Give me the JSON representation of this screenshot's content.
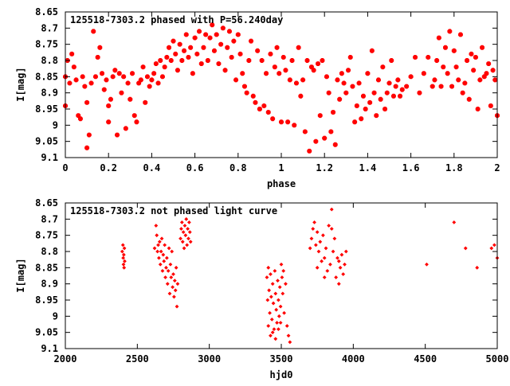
{
  "colors": {
    "points": "#ff0000",
    "axes": "#000000",
    "background": "#ffffff"
  },
  "chart_data": [
    {
      "type": "scatter",
      "title": "125518-7303.2 phased with P=56.240day",
      "xlabel": "phase",
      "ylabel": "I[mag]",
      "xlim": [
        0,
        2
      ],
      "ylim": [
        8.65,
        9.1
      ],
      "y_inverted": true,
      "grid": false,
      "marker": "star",
      "xticks": [
        "0",
        "0.2",
        "0.4",
        "0.6",
        "0.8",
        "1",
        "1.2",
        "1.4",
        "1.6",
        "1.8",
        "2"
      ],
      "yticks": [
        "8.65",
        "8.7",
        "8.75",
        "8.8",
        "8.85",
        "8.9",
        "8.95",
        "9",
        "9.05",
        "9.1"
      ],
      "points": [
        [
          0.0,
          8.85
        ],
        [
          0.0,
          8.94
        ],
        [
          0.01,
          8.8
        ],
        [
          0.02,
          8.87
        ],
        [
          0.03,
          8.78
        ],
        [
          0.04,
          8.82
        ],
        [
          0.05,
          8.86
        ],
        [
          0.06,
          8.97
        ],
        [
          0.07,
          8.98
        ],
        [
          0.08,
          8.85
        ],
        [
          0.09,
          8.88
        ],
        [
          0.1,
          8.93
        ],
        [
          0.1,
          9.07
        ],
        [
          0.11,
          9.03
        ],
        [
          0.12,
          8.87
        ],
        [
          0.13,
          8.71
        ],
        [
          0.14,
          8.85
        ],
        [
          0.15,
          8.79
        ],
        [
          0.16,
          8.76
        ],
        [
          0.17,
          8.84
        ],
        [
          0.18,
          8.89
        ],
        [
          0.19,
          8.86
        ],
        [
          0.2,
          8.94
        ],
        [
          0.2,
          8.99
        ],
        [
          0.21,
          8.92
        ],
        [
          0.22,
          8.85
        ],
        [
          0.23,
          8.83
        ],
        [
          0.24,
          9.03
        ],
        [
          0.25,
          8.84
        ],
        [
          0.26,
          8.9
        ],
        [
          0.27,
          8.85
        ],
        [
          0.28,
          9.01
        ],
        [
          0.29,
          8.87
        ],
        [
          0.3,
          8.92
        ],
        [
          0.31,
          8.84
        ],
        [
          0.32,
          8.97
        ],
        [
          0.33,
          8.99
        ],
        [
          0.34,
          8.87
        ],
        [
          0.35,
          8.86
        ],
        [
          0.36,
          8.82
        ],
        [
          0.37,
          8.93
        ],
        [
          0.38,
          8.85
        ],
        [
          0.39,
          8.88
        ],
        [
          0.4,
          8.86
        ],
        [
          0.41,
          8.84
        ],
        [
          0.42,
          8.81
        ],
        [
          0.43,
          8.87
        ],
        [
          0.44,
          8.8
        ],
        [
          0.45,
          8.85
        ],
        [
          0.46,
          8.82
        ],
        [
          0.47,
          8.79
        ],
        [
          0.48,
          8.76
        ],
        [
          0.49,
          8.8
        ],
        [
          0.5,
          8.74
        ],
        [
          0.51,
          8.78
        ],
        [
          0.52,
          8.83
        ],
        [
          0.53,
          8.75
        ],
        [
          0.54,
          8.8
        ],
        [
          0.55,
          8.77
        ],
        [
          0.56,
          8.72
        ],
        [
          0.57,
          8.79
        ],
        [
          0.58,
          8.76
        ],
        [
          0.59,
          8.84
        ],
        [
          0.6,
          8.73
        ],
        [
          0.61,
          8.78
        ],
        [
          0.62,
          8.71
        ],
        [
          0.63,
          8.81
        ],
        [
          0.64,
          8.76
        ],
        [
          0.65,
          8.72
        ],
        [
          0.66,
          8.8
        ],
        [
          0.67,
          8.73
        ],
        [
          0.68,
          8.69
        ],
        [
          0.69,
          8.77
        ],
        [
          0.7,
          8.72
        ],
        [
          0.71,
          8.81
        ],
        [
          0.72,
          8.75
        ],
        [
          0.73,
          8.7
        ],
        [
          0.74,
          8.83
        ],
        [
          0.75,
          8.76
        ],
        [
          0.76,
          8.71
        ],
        [
          0.77,
          8.79
        ],
        [
          0.78,
          8.74
        ],
        [
          0.79,
          8.86
        ],
        [
          0.8,
          8.72
        ],
        [
          0.81,
          8.78
        ],
        [
          0.82,
          8.84
        ],
        [
          0.83,
          8.88
        ],
        [
          0.84,
          8.9
        ],
        [
          0.85,
          8.8
        ],
        [
          0.86,
          8.74
        ],
        [
          0.87,
          8.91
        ],
        [
          0.88,
          8.93
        ],
        [
          0.89,
          8.77
        ],
        [
          0.9,
          8.95
        ],
        [
          0.91,
          8.8
        ],
        [
          0.92,
          8.94
        ],
        [
          0.93,
          8.84
        ],
        [
          0.94,
          8.96
        ],
        [
          0.95,
          8.78
        ],
        [
          0.96,
          8.98
        ],
        [
          0.97,
          8.82
        ],
        [
          0.98,
          8.76
        ],
        [
          0.99,
          8.84
        ],
        [
          1.0,
          8.99
        ],
        [
          1.01,
          8.79
        ],
        [
          1.02,
          8.83
        ],
        [
          1.03,
          8.99
        ],
        [
          1.04,
          8.86
        ],
        [
          1.05,
          8.8
        ],
        [
          1.06,
          9.0
        ],
        [
          1.07,
          8.87
        ],
        [
          1.08,
          8.76
        ],
        [
          1.09,
          8.91
        ],
        [
          1.1,
          8.86
        ],
        [
          1.11,
          9.02
        ],
        [
          1.12,
          8.8
        ],
        [
          1.13,
          9.08
        ],
        [
          1.14,
          8.82
        ],
        [
          1.15,
          8.83
        ],
        [
          1.16,
          9.05
        ],
        [
          1.17,
          8.81
        ],
        [
          1.18,
          8.97
        ],
        [
          1.19,
          8.8
        ],
        [
          1.2,
          9.04
        ],
        [
          1.21,
          8.85
        ],
        [
          1.22,
          8.9
        ],
        [
          1.23,
          9.02
        ],
        [
          1.24,
          8.96
        ],
        [
          1.25,
          9.06
        ],
        [
          1.26,
          8.86
        ],
        [
          1.27,
          8.92
        ],
        [
          1.28,
          8.84
        ],
        [
          1.29,
          8.87
        ],
        [
          1.3,
          8.9
        ],
        [
          1.31,
          8.83
        ],
        [
          1.32,
          8.79
        ],
        [
          1.33,
          8.88
        ],
        [
          1.34,
          8.99
        ],
        [
          1.35,
          8.94
        ],
        [
          1.36,
          8.87
        ],
        [
          1.37,
          8.98
        ],
        [
          1.38,
          8.91
        ],
        [
          1.39,
          8.95
        ],
        [
          1.4,
          8.84
        ],
        [
          1.41,
          8.93
        ],
        [
          1.42,
          8.77
        ],
        [
          1.43,
          8.9
        ],
        [
          1.44,
          8.97
        ],
        [
          1.45,
          8.86
        ],
        [
          1.46,
          8.92
        ],
        [
          1.47,
          8.82
        ],
        [
          1.48,
          8.95
        ],
        [
          1.49,
          8.9
        ],
        [
          1.5,
          8.87
        ],
        [
          1.51,
          8.8
        ],
        [
          1.52,
          8.91
        ],
        [
          1.53,
          8.88
        ],
        [
          1.54,
          8.86
        ],
        [
          1.55,
          8.91
        ],
        [
          1.56,
          8.89
        ],
        [
          1.58,
          8.88
        ],
        [
          1.6,
          8.85
        ],
        [
          1.62,
          8.79
        ],
        [
          1.64,
          8.9
        ],
        [
          1.66,
          8.84
        ],
        [
          1.68,
          8.79
        ],
        [
          1.7,
          8.88
        ],
        [
          1.71,
          8.86
        ],
        [
          1.72,
          8.8
        ],
        [
          1.73,
          8.73
        ],
        [
          1.74,
          8.88
        ],
        [
          1.75,
          8.82
        ],
        [
          1.76,
          8.76
        ],
        [
          1.77,
          8.84
        ],
        [
          1.78,
          8.71
        ],
        [
          1.79,
          8.88
        ],
        [
          1.8,
          8.77
        ],
        [
          1.81,
          8.82
        ],
        [
          1.82,
          8.86
        ],
        [
          1.83,
          8.72
        ],
        [
          1.84,
          8.9
        ],
        [
          1.85,
          8.87
        ],
        [
          1.86,
          8.8
        ],
        [
          1.87,
          8.92
        ],
        [
          1.88,
          8.78
        ],
        [
          1.89,
          8.83
        ],
        [
          1.9,
          8.79
        ],
        [
          1.91,
          8.95
        ],
        [
          1.92,
          8.86
        ],
        [
          1.93,
          8.76
        ],
        [
          1.94,
          8.85
        ],
        [
          1.95,
          8.84
        ],
        [
          1.96,
          8.81
        ],
        [
          1.97,
          8.94
        ],
        [
          1.98,
          8.83
        ],
        [
          1.99,
          8.86
        ],
        [
          2.0,
          8.97
        ]
      ]
    },
    {
      "type": "scatter",
      "title": "125518-7303.2 not phased light curve",
      "xlabel": "hjd0",
      "ylabel": "I[mag]",
      "xlim": [
        2000,
        5000
      ],
      "ylim": [
        8.65,
        9.1
      ],
      "y_inverted": true,
      "grid": false,
      "marker": "diamond",
      "xticks": [
        "2000",
        "2500",
        "3000",
        "3500",
        "4000",
        "4500",
        "5000"
      ],
      "yticks": [
        "8.65",
        "8.7",
        "8.75",
        "8.8",
        "8.85",
        "8.9",
        "8.95",
        "9",
        "9.05",
        "9.1"
      ],
      "points": [
        [
          2395,
          8.8
        ],
        [
          2400,
          8.78
        ],
        [
          2402,
          8.82
        ],
        [
          2404,
          8.84
        ],
        [
          2406,
          8.81
        ],
        [
          2408,
          8.85
        ],
        [
          2410,
          8.79
        ],
        [
          2412,
          8.83
        ],
        [
          2620,
          8.79
        ],
        [
          2630,
          8.72
        ],
        [
          2635,
          8.75
        ],
        [
          2640,
          8.8
        ],
        [
          2645,
          8.78
        ],
        [
          2650,
          8.82
        ],
        [
          2655,
          8.77
        ],
        [
          2660,
          8.84
        ],
        [
          2665,
          8.8
        ],
        [
          2670,
          8.76
        ],
        [
          2675,
          8.86
        ],
        [
          2680,
          8.81
        ],
        [
          2685,
          8.83
        ],
        [
          2690,
          8.78
        ],
        [
          2695,
          8.88
        ],
        [
          2700,
          8.85
        ],
        [
          2705,
          8.82
        ],
        [
          2710,
          8.9
        ],
        [
          2715,
          8.86
        ],
        [
          2720,
          8.79
        ],
        [
          2725,
          8.93
        ],
        [
          2730,
          8.84
        ],
        [
          2735,
          8.88
        ],
        [
          2740,
          8.8
        ],
        [
          2745,
          8.91
        ],
        [
          2750,
          8.87
        ],
        [
          2755,
          8.94
        ],
        [
          2760,
          8.89
        ],
        [
          2765,
          8.92
        ],
        [
          2770,
          8.85
        ],
        [
          2775,
          8.97
        ],
        [
          2780,
          8.9
        ],
        [
          2800,
          8.76
        ],
        [
          2805,
          8.73
        ],
        [
          2810,
          8.71
        ],
        [
          2815,
          8.77
        ],
        [
          2820,
          8.74
        ],
        [
          2825,
          8.79
        ],
        [
          2830,
          8.72
        ],
        [
          2835,
          8.75
        ],
        [
          2840,
          8.7
        ],
        [
          2845,
          8.78
        ],
        [
          2850,
          8.73
        ],
        [
          2855,
          8.76
        ],
        [
          2860,
          8.71
        ],
        [
          2865,
          8.74
        ],
        [
          2870,
          8.77
        ],
        [
          3400,
          8.88
        ],
        [
          3405,
          8.95
        ],
        [
          3410,
          8.85
        ],
        [
          3415,
          8.92
        ],
        [
          3420,
          8.99
        ],
        [
          3425,
          8.87
        ],
        [
          3430,
          8.94
        ],
        [
          3435,
          9.01
        ],
        [
          3440,
          8.9
        ],
        [
          3445,
          8.96
        ],
        [
          3450,
          9.04
        ],
        [
          3455,
          8.86
        ],
        [
          3460,
          8.93
        ],
        [
          3465,
          8.98
        ],
        [
          3470,
          9.02
        ],
        [
          3475,
          8.89
        ],
        [
          3480,
          8.95
        ],
        [
          3485,
          9.0
        ],
        [
          3490,
          8.91
        ],
        [
          3495,
          8.97
        ],
        [
          3500,
          8.84
        ],
        [
          3505,
          8.88
        ],
        [
          3510,
          8.93
        ],
        [
          3515,
          8.86
        ],
        [
          3520,
          8.99
        ],
        [
          3530,
          8.9
        ],
        [
          3540,
          9.03
        ],
        [
          3550,
          9.06
        ],
        [
          3560,
          9.08
        ],
        [
          3410,
          9.03
        ],
        [
          3425,
          9.06
        ],
        [
          3440,
          9.05
        ],
        [
          3460,
          9.07
        ],
        [
          3480,
          9.04
        ],
        [
          3495,
          9.02
        ],
        [
          3700,
          8.79
        ],
        [
          3710,
          8.76
        ],
        [
          3720,
          8.73
        ],
        [
          3730,
          8.71
        ],
        [
          3740,
          8.78
        ],
        [
          3750,
          8.74
        ],
        [
          3760,
          8.8
        ],
        [
          3770,
          8.77
        ],
        [
          3780,
          8.83
        ],
        [
          3790,
          8.75
        ],
        [
          3800,
          8.82
        ],
        [
          3810,
          8.79
        ],
        [
          3820,
          8.86
        ],
        [
          3830,
          8.72
        ],
        [
          3840,
          8.84
        ],
        [
          3850,
          8.67
        ],
        [
          3860,
          8.8
        ],
        [
          3870,
          8.76
        ],
        [
          3880,
          8.88
        ],
        [
          3890,
          8.82
        ],
        [
          3900,
          8.9
        ],
        [
          3910,
          8.85
        ],
        [
          3920,
          8.81
        ],
        [
          3930,
          8.87
        ],
        [
          3940,
          8.84
        ],
        [
          3950,
          8.8
        ],
        [
          3750,
          8.85
        ],
        [
          3800,
          8.88
        ],
        [
          3850,
          8.73
        ],
        [
          3900,
          8.83
        ],
        [
          4510,
          8.84
        ],
        [
          4700,
          8.71
        ],
        [
          4780,
          8.79
        ],
        [
          4860,
          8.85
        ],
        [
          4960,
          8.79
        ],
        [
          4980,
          8.78
        ],
        [
          5000,
          8.82
        ]
      ]
    }
  ]
}
